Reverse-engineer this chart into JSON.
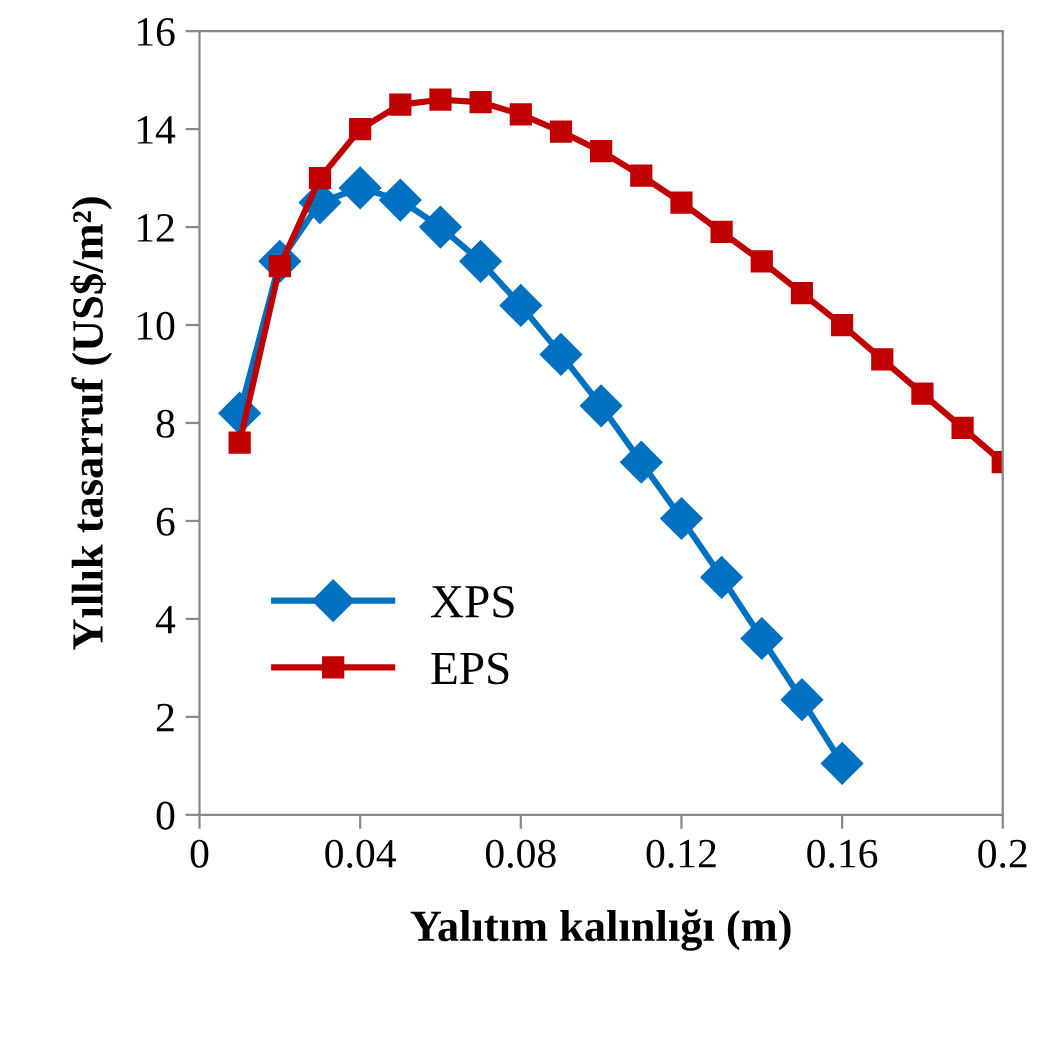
{
  "chart_data": {
    "type": "line",
    "xlabel": "Yalıtım kalınlığı (m)",
    "ylabel": "Yıllık tasarruf (US$/m²)",
    "xlim": [
      0,
      0.2
    ],
    "xticks": [
      0,
      0.04,
      0.08,
      0.12,
      0.16,
      0.2
    ],
    "ylim": [
      0,
      16
    ],
    "yticks": [
      0,
      2,
      4,
      6,
      8,
      10,
      12,
      14,
      16
    ],
    "grid": false,
    "legend": "bottom left",
    "series": [
      {
        "name": "XPS",
        "color": "#0070c0",
        "marker": "diamond",
        "x": [
          0.01,
          0.02,
          0.03,
          0.04,
          0.05,
          0.06,
          0.07,
          0.08,
          0.09,
          0.1,
          0.11,
          0.12,
          0.13,
          0.14,
          0.15,
          0.16
        ],
        "values": [
          8.2,
          11.3,
          12.5,
          12.8,
          12.55,
          12.0,
          11.3,
          10.4,
          9.4,
          8.35,
          7.2,
          6.05,
          4.85,
          3.6,
          2.35,
          1.05
        ]
      },
      {
        "name": "EPS",
        "color": "#c00000",
        "marker": "square",
        "x": [
          0.01,
          0.02,
          0.03,
          0.04,
          0.05,
          0.06,
          0.07,
          0.08,
          0.09,
          0.1,
          0.11,
          0.12,
          0.13,
          0.14,
          0.15,
          0.16,
          0.17,
          0.18,
          0.19,
          0.2
        ],
        "values": [
          7.6,
          11.2,
          13.0,
          14.0,
          14.5,
          14.6,
          14.55,
          14.3,
          13.95,
          13.55,
          13.05,
          12.5,
          11.9,
          11.3,
          10.65,
          10.0,
          9.3,
          8.6,
          7.9,
          7.2
        ]
      }
    ]
  }
}
